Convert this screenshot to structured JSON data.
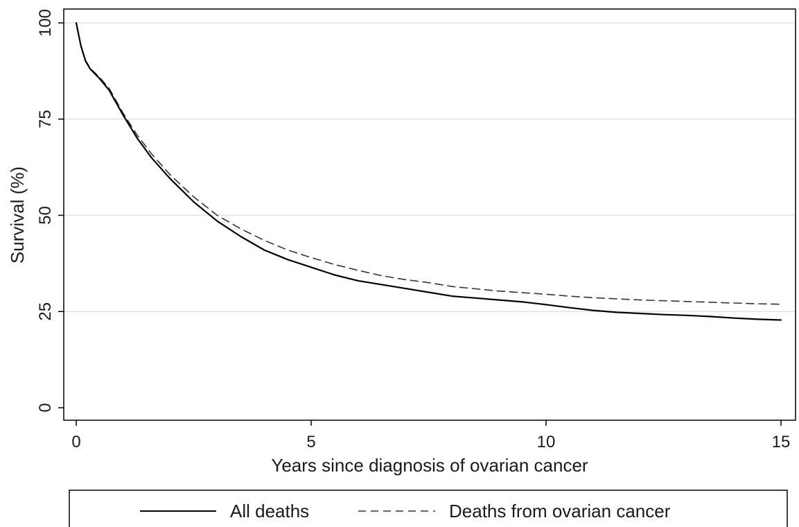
{
  "chart_data": {
    "type": "line",
    "title": "",
    "xlabel": "Years since diagnosis of ovarian cancer",
    "ylabel": "Survival (%)",
    "xlim": [
      0,
      15
    ],
    "ylim": [
      0,
      100
    ],
    "x_ticks": [
      0,
      5,
      10,
      15
    ],
    "y_ticks": [
      0,
      25,
      50,
      75,
      100
    ],
    "x_tick_labels": [
      "0",
      "5",
      "10",
      "15"
    ],
    "y_tick_labels": [
      "0",
      "25",
      "50",
      "75",
      "100"
    ],
    "grid": "horizontal",
    "legend_position": "bottom",
    "series": [
      {
        "name": "All deaths",
        "style": "solid",
        "color": "#000000",
        "points": [
          [
            0,
            100
          ],
          [
            0.1,
            94
          ],
          [
            0.2,
            90
          ],
          [
            0.3,
            88
          ],
          [
            0.5,
            85.5
          ],
          [
            0.7,
            82.5
          ],
          [
            1.0,
            76
          ],
          [
            1.3,
            70
          ],
          [
            1.6,
            65
          ],
          [
            2.0,
            59.5
          ],
          [
            2.5,
            53.5
          ],
          [
            3.0,
            48.5
          ],
          [
            3.5,
            44.5
          ],
          [
            4.0,
            41
          ],
          [
            4.5,
            38.5
          ],
          [
            5.0,
            36.5
          ],
          [
            5.5,
            34.5
          ],
          [
            6.0,
            33
          ],
          [
            6.5,
            32
          ],
          [
            7.0,
            31
          ],
          [
            7.5,
            30
          ],
          [
            8.0,
            29
          ],
          [
            8.5,
            28.5
          ],
          [
            9.0,
            28
          ],
          [
            9.5,
            27.5
          ],
          [
            10.0,
            26.8
          ],
          [
            10.5,
            26
          ],
          [
            11.0,
            25.3
          ],
          [
            11.5,
            24.8
          ],
          [
            12.0,
            24.5
          ],
          [
            12.5,
            24.2
          ],
          [
            13.0,
            24
          ],
          [
            13.5,
            23.7
          ],
          [
            14.0,
            23.3
          ],
          [
            14.5,
            23
          ],
          [
            15.0,
            22.8
          ]
        ]
      },
      {
        "name": "Deaths from ovarian cancer",
        "style": "dashed",
        "color": "#333333",
        "points": [
          [
            0,
            100
          ],
          [
            0.1,
            94
          ],
          [
            0.2,
            90.2
          ],
          [
            0.3,
            88.2
          ],
          [
            0.5,
            85.8
          ],
          [
            0.7,
            83
          ],
          [
            1.0,
            76.5
          ],
          [
            1.3,
            70.8
          ],
          [
            1.6,
            66
          ],
          [
            2.0,
            60.5
          ],
          [
            2.5,
            54.8
          ],
          [
            3.0,
            50
          ],
          [
            3.5,
            46.5
          ],
          [
            4.0,
            43.5
          ],
          [
            4.5,
            41
          ],
          [
            5.0,
            39
          ],
          [
            5.5,
            37.2
          ],
          [
            6.0,
            35.7
          ],
          [
            6.5,
            34.3
          ],
          [
            7.0,
            33.3
          ],
          [
            7.5,
            32.5
          ],
          [
            8.0,
            31.5
          ],
          [
            8.5,
            30.9
          ],
          [
            9.0,
            30.3
          ],
          [
            9.5,
            29.9
          ],
          [
            10.0,
            29.5
          ],
          [
            10.5,
            29
          ],
          [
            11.0,
            28.6
          ],
          [
            11.5,
            28.3
          ],
          [
            12.0,
            28
          ],
          [
            12.5,
            27.8
          ],
          [
            13.0,
            27.6
          ],
          [
            13.5,
            27.4
          ],
          [
            14.0,
            27.2
          ],
          [
            14.5,
            27
          ],
          [
            15.0,
            26.9
          ]
        ]
      }
    ]
  },
  "colors": {
    "background": "#ffffff",
    "gridline": "#e3e3e3",
    "axis": "#000000"
  }
}
